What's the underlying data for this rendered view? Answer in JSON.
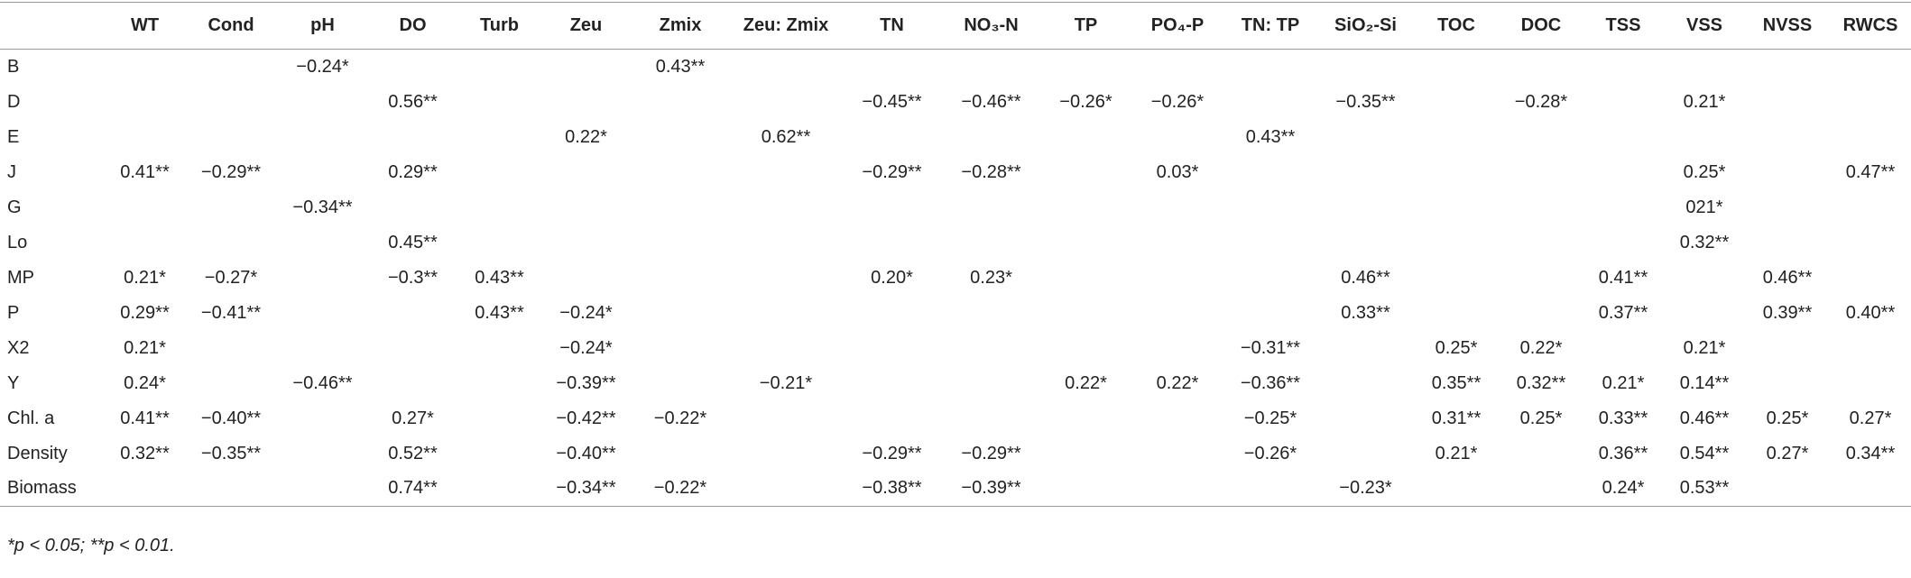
{
  "table": {
    "headers": [
      "WT",
      "Cond",
      "pH",
      "DO",
      "Turb",
      "Zeu",
      "Zmix",
      "Zeu: Zmix",
      "TN",
      "NO₃-N",
      "TP",
      "PO₄-P",
      "TN: TP",
      "SiO₂-Si",
      "TOC",
      "DOC",
      "TSS",
      "VSS",
      "NVSS",
      "RWCS"
    ],
    "rows": [
      [
        "B",
        null,
        null,
        "−0.24*",
        null,
        null,
        null,
        "0.43**",
        null,
        null,
        null,
        null,
        null,
        null,
        null,
        null,
        null,
        null,
        null,
        null,
        null
      ],
      [
        "D",
        null,
        null,
        null,
        "0.56**",
        null,
        null,
        null,
        null,
        "−0.45**",
        "−0.46**",
        "−0.26*",
        "−0.26*",
        null,
        "−0.35**",
        null,
        "−0.28*",
        null,
        "0.21*",
        null,
        null
      ],
      [
        "E",
        null,
        null,
        null,
        null,
        null,
        "0.22*",
        null,
        "0.62**",
        null,
        null,
        null,
        null,
        "0.43**",
        null,
        null,
        null,
        null,
        null,
        null,
        null
      ],
      [
        "J",
        "0.41**",
        "−0.29**",
        null,
        "0.29**",
        null,
        null,
        null,
        null,
        "−0.29**",
        "−0.28**",
        null,
        "0.03*",
        null,
        null,
        null,
        null,
        null,
        "0.25*",
        null,
        "0.47**"
      ],
      [
        "G",
        null,
        null,
        "−0.34**",
        null,
        null,
        null,
        null,
        null,
        null,
        null,
        null,
        null,
        null,
        null,
        null,
        null,
        null,
        "021*",
        null,
        null
      ],
      [
        "Lo",
        null,
        null,
        null,
        "0.45**",
        null,
        null,
        null,
        null,
        null,
        null,
        null,
        null,
        null,
        null,
        null,
        null,
        null,
        "0.32**",
        null,
        null
      ],
      [
        "MP",
        "0.21*",
        "−0.27*",
        null,
        "−0.3**",
        "0.43**",
        null,
        null,
        null,
        "0.20*",
        "0.23*",
        null,
        null,
        null,
        "0.46**",
        null,
        null,
        "0.41**",
        null,
        "0.46**",
        null
      ],
      [
        "P",
        "0.29**",
        "−0.41**",
        null,
        null,
        "0.43**",
        "−0.24*",
        null,
        null,
        null,
        null,
        null,
        null,
        null,
        "0.33**",
        null,
        null,
        "0.37**",
        null,
        "0.39**",
        "0.40**"
      ],
      [
        "X2",
        "0.21*",
        null,
        null,
        null,
        null,
        "−0.24*",
        null,
        null,
        null,
        null,
        null,
        null,
        "−0.31**",
        null,
        "0.25*",
        "0.22*",
        null,
        "0.21*",
        null,
        null
      ],
      [
        "Y",
        "0.24*",
        null,
        "−0.46**",
        null,
        null,
        "−0.39**",
        null,
        "−0.21*",
        null,
        null,
        "0.22*",
        "0.22*",
        "−0.36**",
        null,
        "0.35**",
        "0.32**",
        "0.21*",
        "0.14**",
        null,
        null
      ],
      [
        "Chl. a",
        "0.41**",
        "−0.40**",
        null,
        "0.27*",
        null,
        "−0.42**",
        "−0.22*",
        null,
        null,
        null,
        null,
        null,
        "−0.25*",
        null,
        "0.31**",
        "0.25*",
        "0.33**",
        "0.46**",
        "0.25*",
        "0.27*"
      ],
      [
        "Density",
        "0.32**",
        "−0.35**",
        null,
        "0.52**",
        null,
        "−0.40**",
        null,
        null,
        "−0.29**",
        "−0.29**",
        null,
        null,
        "−0.26*",
        null,
        "0.21*",
        null,
        "0.36**",
        "0.54**",
        "0.27*",
        "0.34**"
      ],
      [
        "Biomass",
        null,
        null,
        null,
        "0.74**",
        null,
        "−0.34**",
        "−0.22*",
        null,
        "−0.38**",
        "−0.39**",
        null,
        null,
        null,
        "−0.23*",
        null,
        null,
        "0.24*",
        "0.53**",
        null,
        null
      ]
    ]
  },
  "footnote": "*p < 0.05; **p < 0.01."
}
